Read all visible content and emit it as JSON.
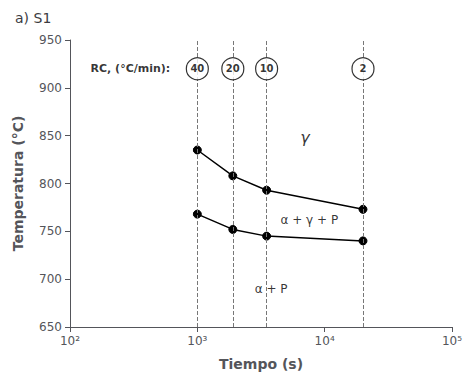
{
  "chart_data": {
    "type": "line",
    "title": "a) S1",
    "x_label": "Tiempo (s)",
    "y_label": "Temperatura (°C)",
    "log": "x",
    "grid": false,
    "xlim": [
      100,
      100000
    ],
    "xticks": [
      {
        "value": 100,
        "label": "10²"
      },
      {
        "value": 1000,
        "label": "10³"
      },
      {
        "value": 10000,
        "label": "10⁴"
      },
      {
        "value": 100000,
        "label": "10⁵"
      }
    ],
    "ylim": [
      650,
      950
    ],
    "yticks": [
      650,
      700,
      750,
      800,
      850,
      900,
      950
    ],
    "x": [
      1000,
      1900,
      3500,
      20000
    ],
    "series": [
      {
        "values": [
          835,
          808,
          793,
          773
        ],
        "color": "#000000",
        "marker": "circle",
        "line_style": "solid"
      },
      {
        "values": [
          768,
          752,
          745,
          740
        ],
        "color": "#000000",
        "marker": "circle",
        "line_style": "solid"
      }
    ],
    "vertical_lines": {
      "x": [
        1000,
        1900,
        3500,
        20000
      ],
      "color": "#777777",
      "line_style": "dashed"
    },
    "annotations": [
      {
        "text": "γ",
        "x": 7000,
        "y": 848
      },
      {
        "text": "α + γ + P",
        "x": 4500,
        "y": 762
      },
      {
        "text": "α + P",
        "x": 3800,
        "y": 690
      }
    ],
    "rc_label": {
      "text": "RC, (°C/min):",
      "x": 145,
      "y": 920
    },
    "circled_labels": {
      "x": [
        1000,
        1900,
        3500,
        20000
      ],
      "y": 920,
      "values": [
        40,
        20,
        10,
        2
      ]
    }
  }
}
